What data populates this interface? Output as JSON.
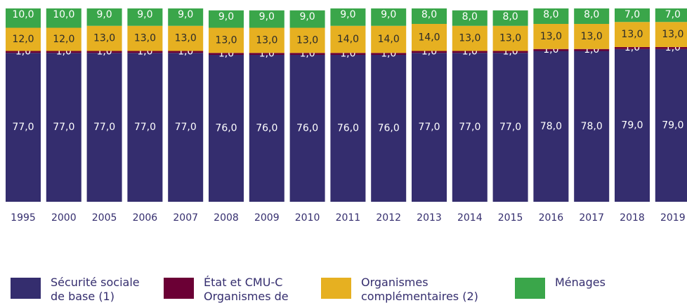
{
  "chart_data": {
    "type": "bar",
    "stacked": true,
    "categories": [
      "1995",
      "2000",
      "2005",
      "2006",
      "2007",
      "2008",
      "2009",
      "2010",
      "2011",
      "2012",
      "2013",
      "2014",
      "2015",
      "2016",
      "2017",
      "2018",
      "2019"
    ],
    "ylim": [
      0,
      100
    ],
    "series": [
      {
        "name": "Sécurité sociale de base (1)",
        "color": "#342d6e",
        "values": [
          77,
          77,
          77,
          77,
          77,
          76,
          76,
          76,
          76,
          76,
          77,
          77,
          77,
          78,
          78,
          79,
          79
        ],
        "value_labels": [
          "77,0",
          "77,0",
          "77,0",
          "77,0",
          "77,0",
          "76,0",
          "76,0",
          "76,0",
          "76,0",
          "76,0",
          "77,0",
          "77,0",
          "77,0",
          "78,0",
          "78,0",
          "79,0",
          "79,0"
        ]
      },
      {
        "name": "État et CMU-C Organismes de base",
        "color": "#6b0035",
        "values": [
          1,
          1,
          1,
          1,
          1,
          1,
          1,
          1,
          1,
          1,
          1,
          1,
          1,
          1,
          1,
          1,
          1
        ],
        "value_labels": [
          "1,0",
          "1,0",
          "1,0",
          "1,0",
          "1,0",
          "1,0",
          "1,0",
          "1,0",
          "1,0",
          "1,0",
          "1,0",
          "1,0",
          "1,0",
          "1,0",
          "1,0",
          "1,0",
          "1,0"
        ]
      },
      {
        "name": "Organismes complémentaires (2)",
        "color": "#e6b021",
        "values": [
          12,
          12,
          13,
          13,
          13,
          13,
          13,
          13,
          14,
          14,
          14,
          13,
          13,
          13,
          13,
          13,
          13
        ],
        "value_labels": [
          "12,0",
          "12,0",
          "13,0",
          "13,0",
          "13,0",
          "13,0",
          "13,0",
          "13,0",
          "14,0",
          "14,0",
          "14,0",
          "13,0",
          "13,0",
          "13,0",
          "13,0",
          "13,0",
          "13,0"
        ]
      },
      {
        "name": "Ménages",
        "color": "#3aa64a",
        "values": [
          10,
          10,
          9,
          9,
          9,
          9,
          9,
          9,
          9,
          9,
          8,
          8,
          8,
          8,
          8,
          7,
          7
        ],
        "value_labels": [
          "10,0",
          "10,0",
          "9,0",
          "9,0",
          "9,0",
          "9,0",
          "9,0",
          "9,0",
          "9,0",
          "9,0",
          "8,0",
          "8,0",
          "8,0",
          "8,0",
          "8,0",
          "7,0",
          "7,0"
        ]
      }
    ]
  }
}
